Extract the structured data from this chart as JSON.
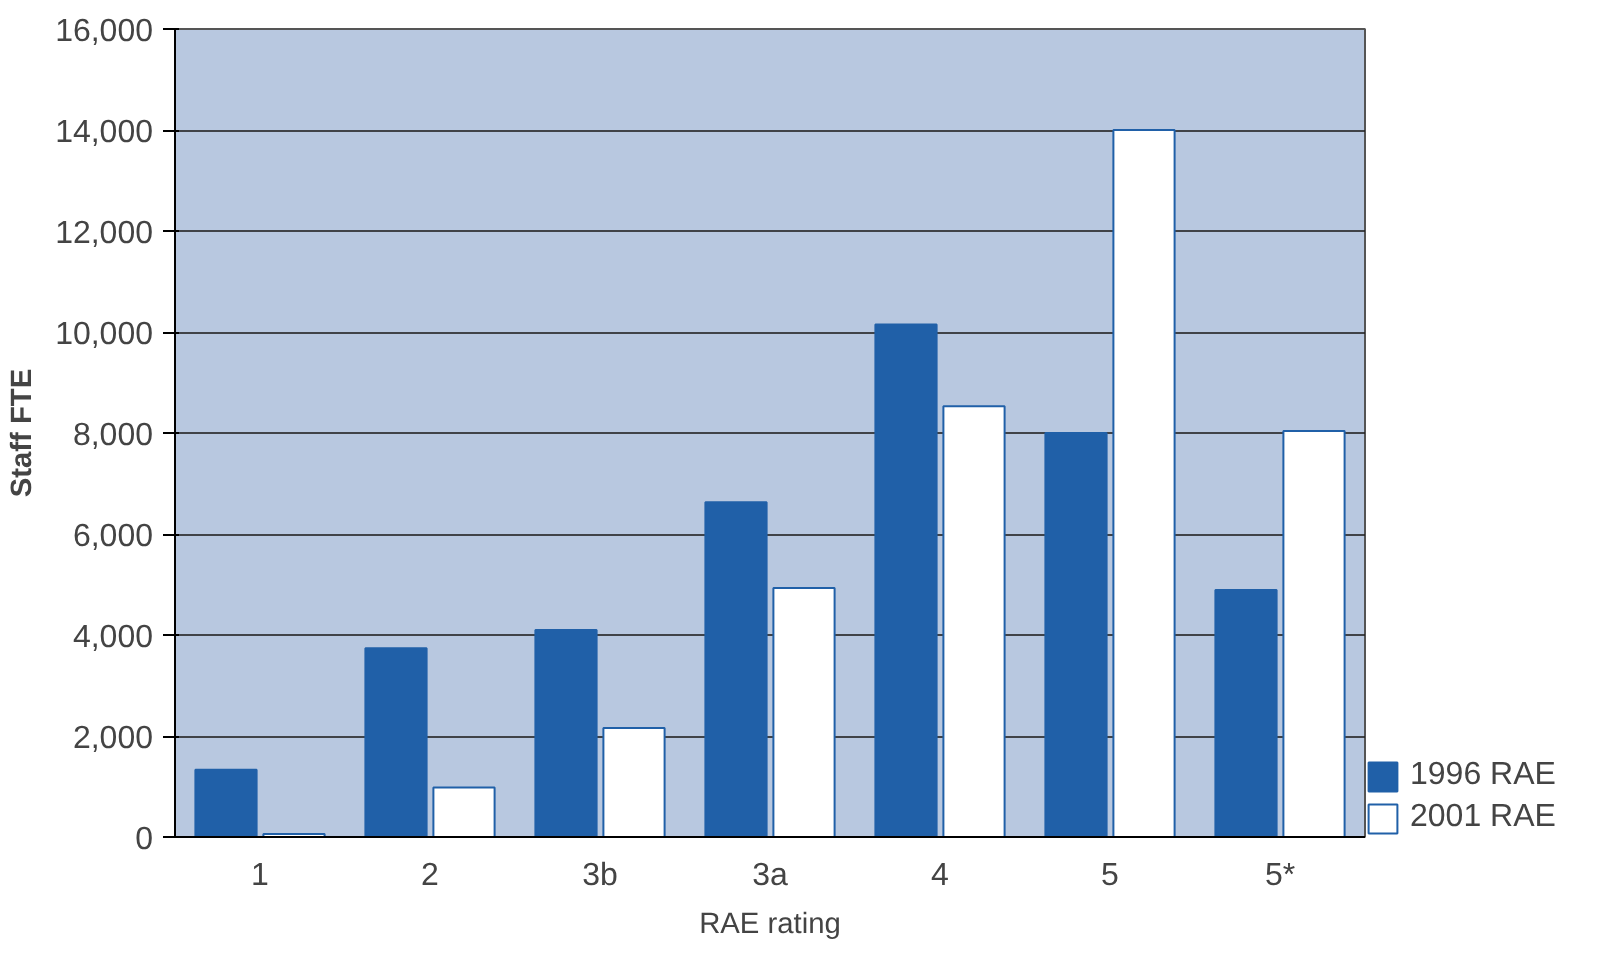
{
  "chart_data": {
    "type": "bar",
    "xlabel": "RAE rating",
    "ylabel": "Staff FTE",
    "categories": [
      "1",
      "2",
      "3b",
      "3a",
      "4",
      "5",
      "5*"
    ],
    "series": [
      {
        "name": "1996 RAE",
        "color": "#2060a8",
        "values": [
          1330,
          3740,
          4100,
          6630,
          10150,
          8000,
          4890
        ]
      },
      {
        "name": "2001 RAE",
        "color": "#ffffff",
        "values": [
          60,
          980,
          2160,
          4930,
          8530,
          14000,
          8040
        ]
      }
    ],
    "ylim": [
      0,
      16000
    ],
    "yticks": [
      {
        "value": 0,
        "label": "0"
      },
      {
        "value": 2000,
        "label": "2,000"
      },
      {
        "value": 4000,
        "label": "4,000"
      },
      {
        "value": 6000,
        "label": "6,000"
      },
      {
        "value": 8000,
        "label": "8,000"
      },
      {
        "value": 10000,
        "label": "10,000"
      },
      {
        "value": 12000,
        "label": "12,000"
      },
      {
        "value": 14000,
        "label": "14,000"
      },
      {
        "value": 16000,
        "label": "16,000"
      }
    ],
    "grid": "y",
    "legend": "bottom right"
  }
}
